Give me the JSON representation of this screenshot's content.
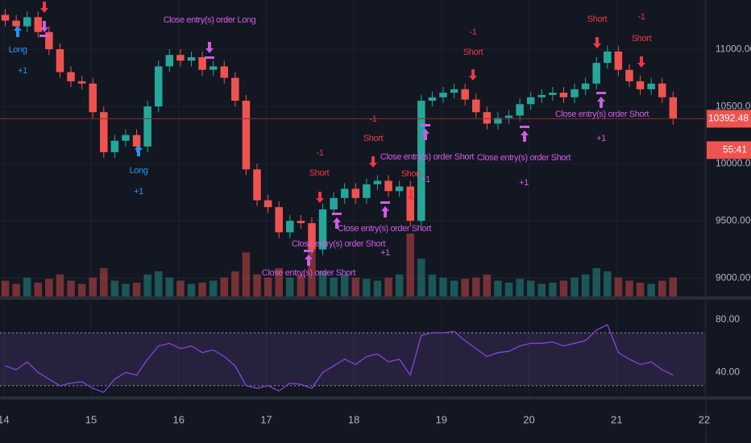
{
  "chart_data": {
    "type": "candlestick",
    "xlim": [
      13.96,
      22.01
    ],
    "xticks": [
      14,
      15,
      16,
      17,
      18,
      19,
      20,
      21,
      22
    ],
    "ylim": [
      8840,
      11430
    ],
    "yticks": [
      {
        "value": 9000,
        "label": "9000.00"
      },
      {
        "value": 9500,
        "label": "9500.00"
      },
      {
        "value": 10000,
        "label": "10000.00"
      },
      {
        "value": 10500,
        "label": "10500.00"
      },
      {
        "value": 11000,
        "label": "11000.00"
      }
    ],
    "up_color": "#26a69a",
    "down_color": "#ef5350",
    "grid": true,
    "x": [
      14.02,
      14.145,
      14.27,
      14.395,
      14.52,
      14.645,
      14.77,
      14.895,
      15.02,
      15.145,
      15.27,
      15.395,
      15.52,
      15.645,
      15.77,
      15.895,
      16.02,
      16.145,
      16.27,
      16.395,
      16.52,
      16.645,
      16.77,
      16.895,
      17.02,
      17.145,
      17.27,
      17.395,
      17.52,
      17.645,
      17.77,
      17.895,
      18.02,
      18.145,
      18.27,
      18.395,
      18.52,
      18.645,
      18.77,
      18.895,
      19.02,
      19.145,
      19.27,
      19.395,
      19.52,
      19.645,
      19.77,
      19.895,
      20.02,
      20.145,
      20.27,
      20.395,
      20.52,
      20.645,
      20.77,
      20.895,
      21.02,
      21.145,
      21.27,
      21.395,
      21.52,
      21.645
    ],
    "open": [
      11300,
      11250,
      11200,
      11280,
      11150,
      11000,
      10800,
      10720,
      10700,
      10450,
      10100,
      10200,
      10250,
      10150,
      10500,
      10850,
      10950,
      10900,
      10930,
      10820,
      10850,
      10750,
      10550,
      9950,
      9680,
      9620,
      9400,
      9500,
      9480,
      9250,
      9600,
      9700,
      9780,
      9700,
      9820,
      9850,
      9760,
      9800,
      9500,
      10550,
      10580,
      10620,
      10650,
      10560,
      10450,
      10350,
      10400,
      10420,
      10520,
      10580,
      10600,
      10620,
      10580,
      10650,
      10700,
      10880,
      10980,
      10820,
      10720,
      10650,
      10700,
      10580
    ],
    "high": [
      11350,
      11300,
      11330,
      11330,
      11200,
      11050,
      10850,
      10770,
      10750,
      10500,
      10250,
      10300,
      10300,
      10550,
      10900,
      11000,
      11000,
      10980,
      10980,
      10900,
      10900,
      10800,
      10600,
      10000,
      9730,
      9670,
      9550,
      9550,
      9530,
      9650,
      9750,
      9830,
      9830,
      9870,
      9900,
      9900,
      9850,
      9850,
      10600,
      10630,
      10670,
      10700,
      10700,
      10610,
      10500,
      10450,
      10470,
      10570,
      10630,
      10650,
      10670,
      10670,
      10700,
      10750,
      10930,
      11030,
      11030,
      10870,
      10770,
      10750,
      10750,
      10630
    ],
    "low": [
      11200,
      11150,
      11150,
      11100,
      10950,
      10750,
      10670,
      10650,
      10400,
      10050,
      10050,
      10150,
      10100,
      10100,
      10450,
      10800,
      10850,
      10850,
      10770,
      10770,
      10700,
      10500,
      9900,
      9630,
      9570,
      9350,
      9350,
      9430,
      9200,
      9200,
      9550,
      9650,
      9650,
      9650,
      9770,
      9710,
      9710,
      9450,
      9450,
      10500,
      10530,
      10570,
      10510,
      10400,
      10300,
      10300,
      10350,
      10370,
      10470,
      10530,
      10550,
      10530,
      10530,
      10600,
      10650,
      10830,
      10770,
      10670,
      10600,
      10600,
      10530,
      10340
    ],
    "close": [
      11250,
      11200,
      11280,
      11150,
      11000,
      10800,
      10720,
      10700,
      10450,
      10100,
      10200,
      10250,
      10150,
      10500,
      10850,
      10950,
      10900,
      10930,
      10820,
      10850,
      10750,
      10550,
      9950,
      9680,
      9620,
      9400,
      9500,
      9480,
      9250,
      9600,
      9700,
      9780,
      9700,
      9820,
      9850,
      9760,
      9800,
      9500,
      10550,
      10580,
      10620,
      10650,
      10560,
      10450,
      10350,
      10400,
      10420,
      10520,
      10580,
      10600,
      10620,
      10580,
      10650,
      10700,
      10880,
      10980,
      10820,
      10720,
      10650,
      10700,
      10580,
      10392.48
    ],
    "volume": [
      25,
      20,
      30,
      22,
      28,
      35,
      25,
      20,
      30,
      45,
      25,
      20,
      22,
      35,
      40,
      30,
      25,
      20,
      22,
      25,
      30,
      40,
      70,
      35,
      30,
      45,
      30,
      35,
      90,
      40,
      30,
      35,
      30,
      28,
      25,
      30,
      35,
      100,
      60,
      35,
      30,
      25,
      28,
      30,
      35,
      25,
      22,
      28,
      25,
      20,
      22,
      25,
      30,
      35,
      45,
      40,
      30,
      25,
      22,
      20,
      25,
      30
    ],
    "rsi": [
      45,
      42,
      48,
      40,
      35,
      30,
      32,
      33,
      28,
      25,
      35,
      40,
      38,
      50,
      60,
      62,
      58,
      60,
      55,
      57,
      52,
      45,
      30,
      28,
      30,
      26,
      32,
      31,
      28,
      40,
      45,
      50,
      46,
      52,
      54,
      48,
      50,
      38,
      68,
      70,
      70,
      71,
      64,
      58,
      52,
      55,
      56,
      60,
      62,
      62,
      63,
      60,
      62,
      64,
      72,
      76,
      55,
      50,
      46,
      48,
      42,
      38
    ],
    "rsi_color": "#8e44e8",
    "rsi_ylim": [
      22,
      95
    ],
    "rsi_yticks": [
      {
        "value": 40,
        "label": "40.00"
      },
      {
        "value": 80,
        "label": "80.00"
      }
    ],
    "rsi_band": [
      30,
      70
    ],
    "countdown": "55:41",
    "annotations": [
      "Long",
      "+1",
      "Close entry(s) order Long",
      "Long",
      "+1",
      "-1",
      "Short",
      "-1",
      "Short",
      "Close entry(s) order Short",
      "Short",
      "Close entry(s) order Short",
      "Close entry(s) order Short",
      "+1",
      "Close entry(s) order Short",
      "+1",
      "-1",
      "Short",
      "Close entry(s) order Short",
      "+1",
      "Short",
      "-1",
      "Short",
      "Close entry(s) order Short",
      "+1"
    ]
  }
}
